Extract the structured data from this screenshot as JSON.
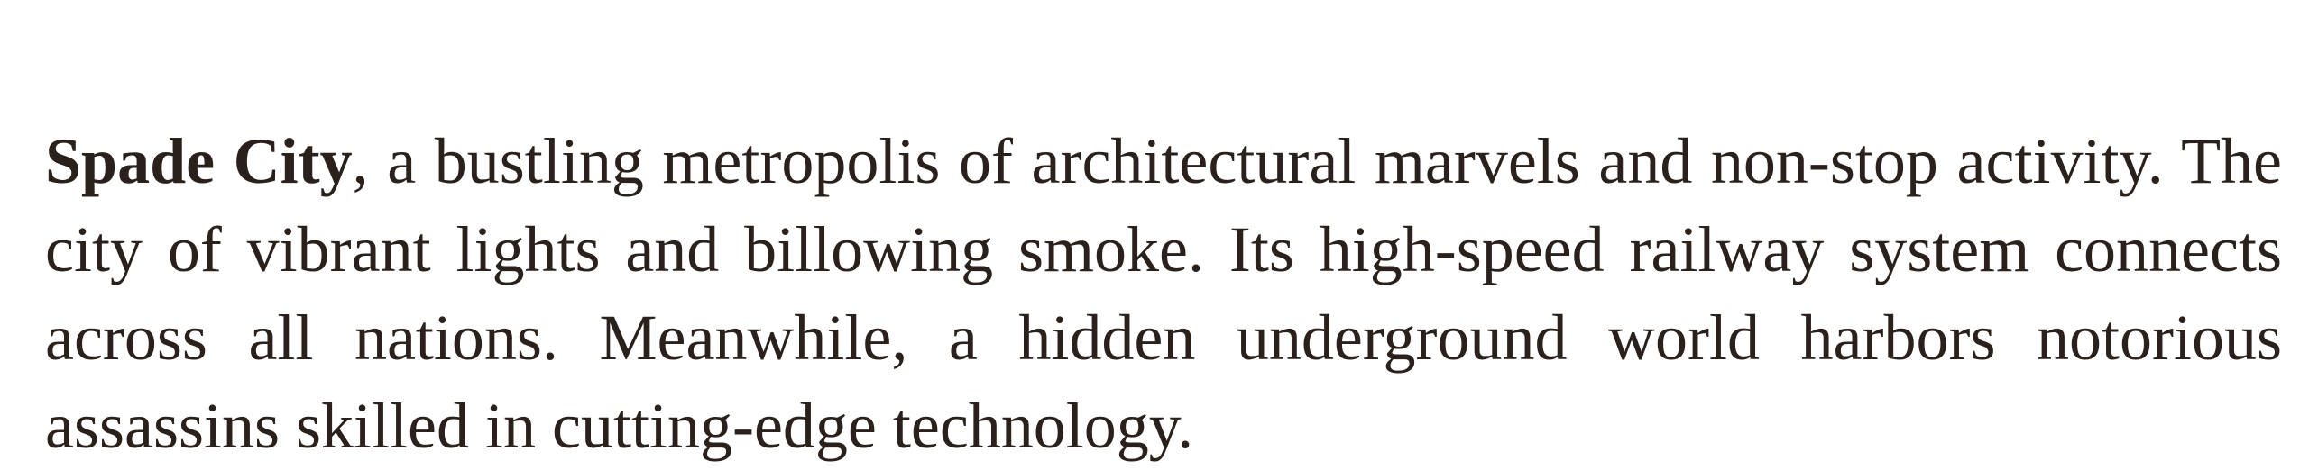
{
  "document": {
    "paragraph": {
      "bold_name": "Spade City",
      "text": ", a bustling metropolis of architectural marvels and non-stop activity. The city of vibrant lights and billowing smoke. Its high-speed railway system connects across all nations. Meanwhile, a hidden underground world harbors notorious assassins skilled in cutting-edge technology."
    }
  },
  "colors": {
    "text": "#2b211c",
    "background": "#ffffff"
  }
}
